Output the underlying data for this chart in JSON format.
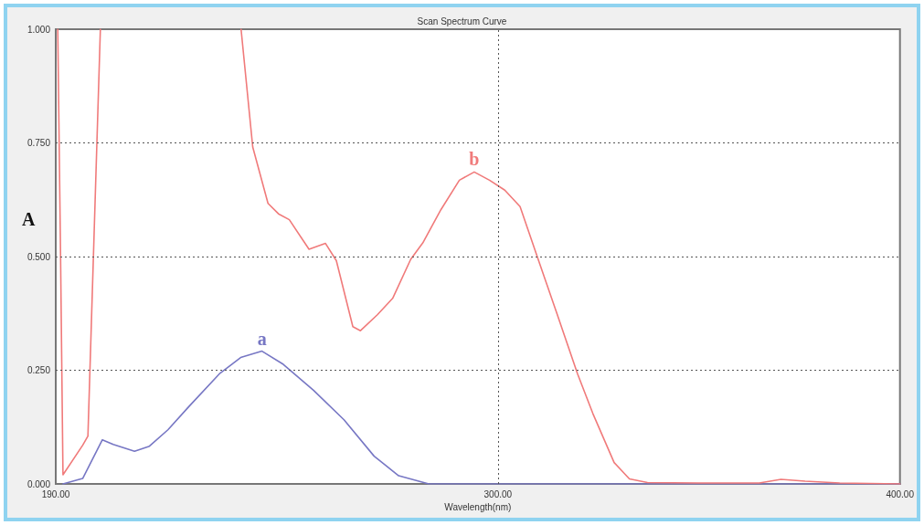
{
  "chart_data": {
    "type": "line",
    "title": "Scan Spectrum Curve",
    "xlabel": "Wavelength(nm)",
    "ylabel": "A",
    "xlim": [
      190,
      400
    ],
    "xticks": [
      {
        "value": 190,
        "label": "190.00"
      },
      {
        "value": 300,
        "label": "300.00"
      },
      {
        "value": 400,
        "label": "400.00"
      }
    ],
    "ylim": [
      0,
      1
    ],
    "yticks": [
      {
        "value": 0,
        "label": "0.000"
      },
      {
        "value": 0.25,
        "label": "0.250"
      },
      {
        "value": 0.5,
        "label": "0.500"
      },
      {
        "value": 0.75,
        "label": "0.750"
      },
      {
        "value": 1,
        "label": "1.000"
      }
    ],
    "grid": true,
    "marker": "none",
    "line_style": "solid",
    "series": [
      {
        "color": "#7777c4",
        "x": [
          191.8,
          196.7,
          201.6,
          204.3,
          209.6,
          213.3,
          217.9,
          223.1,
          230.7,
          236,
          241.3,
          246.6,
          254.1,
          261.7,
          269.2,
          275.3,
          282.8,
          290,
          300,
          320,
          340,
          360,
          380,
          400
        ],
        "values": [
          0,
          0.012,
          0.097,
          0.087,
          0.072,
          0.083,
          0.119,
          0.17,
          0.242,
          0.278,
          0.292,
          0.263,
          0.206,
          0.141,
          0.061,
          0.018,
          0,
          0,
          0,
          0,
          0,
          0,
          0,
          0
        ]
      },
      {
        "color": "#f07a7a",
        "x": [
          190.5,
          191.2,
          191.8,
          196.7,
          198,
          201.1,
          218,
          236.1,
          239,
          242.8,
          245.4,
          248.1,
          253,
          257.1,
          259.8,
          263.9,
          265.8,
          270,
          273.8,
          278.3,
          281.3,
          285.8,
          290.4,
          294.1,
          297.9,
          301.7,
          305.5,
          310,
          314.5,
          319.8,
          323.6,
          328.9,
          332.7,
          337.2,
          350,
          365,
          370.4,
          376.4,
          385,
          400
        ],
        "values": [
          1,
          0.5,
          0.02,
          0.085,
          0.105,
          1,
          null,
          1,
          0.741,
          0.617,
          0.594,
          0.581,
          0.516,
          0.529,
          0.491,
          0.346,
          0.337,
          0.372,
          0.408,
          0.494,
          0.53,
          0.603,
          0.668,
          0.686,
          0.668,
          0.646,
          0.61,
          0.494,
          0.379,
          0.242,
          0.155,
          0.047,
          0.011,
          0.003,
          0.002,
          0.002,
          0.01,
          0.006,
          0.002,
          0
        ]
      }
    ],
    "annotations": [
      {
        "text": "a",
        "x": 241.3,
        "y": 0.292
      },
      {
        "text": "b",
        "x": 294.1,
        "y": 0.686
      }
    ]
  }
}
